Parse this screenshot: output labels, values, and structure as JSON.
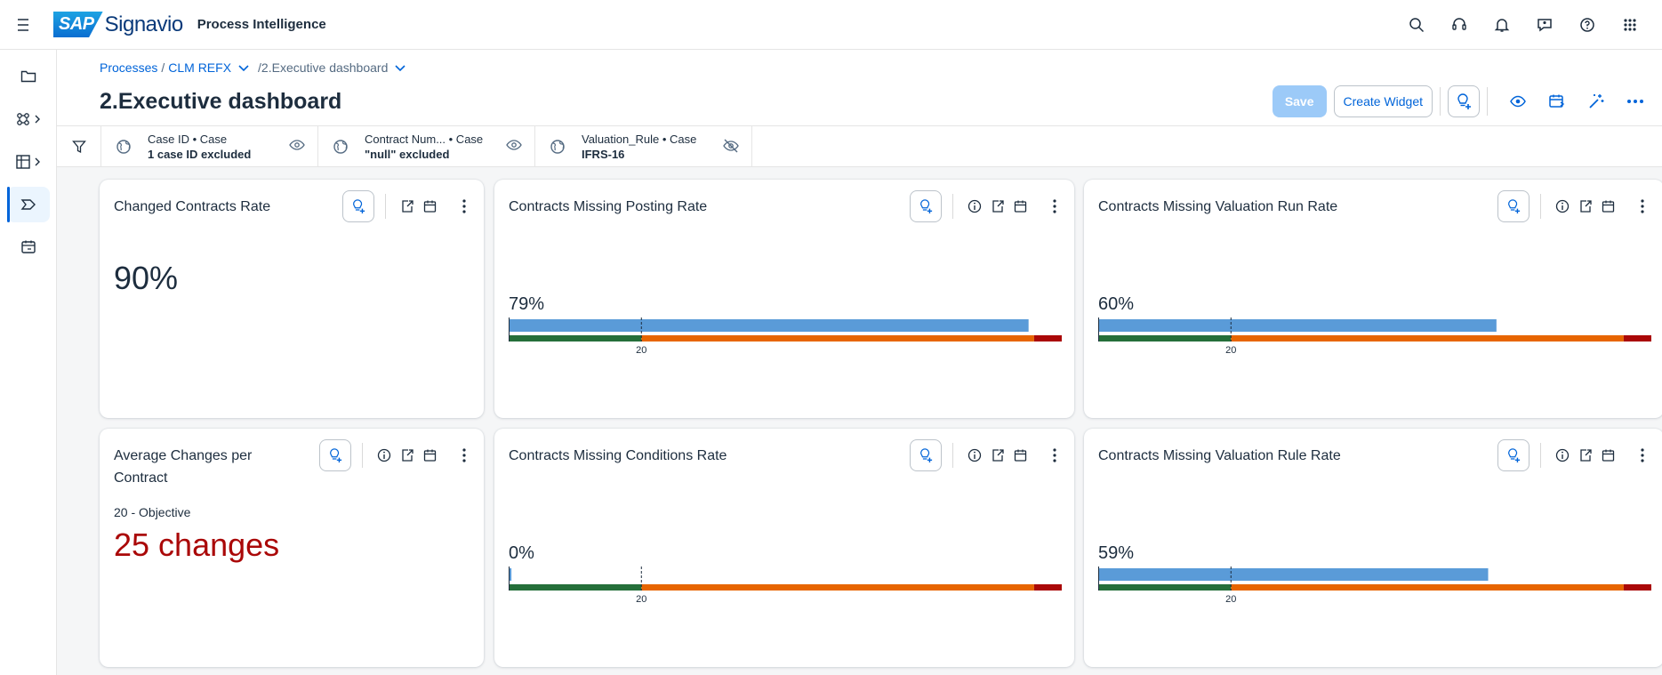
{
  "app": {
    "brand_badge": "SAP",
    "brand_name": "Signavio",
    "product": "Process Intelligence"
  },
  "topbar_icons": [
    "search-icon",
    "headset-icon",
    "bell-icon",
    "feedback-icon",
    "help-icon",
    "grid-icon"
  ],
  "sidebar_icons": [
    "folder-icon",
    "process-icon",
    "dashboard-icon",
    "investigation-icon",
    "calendar-icon"
  ],
  "breadcrumb": {
    "root": "Processes",
    "process": "CLM REFX",
    "current": "/2.Executive dashboard"
  },
  "page_title": "2.Executive dashboard",
  "actions": {
    "save": "Save",
    "create_widget": "Create Widget"
  },
  "filters": [
    {
      "label": "Case ID • Case",
      "value": "1 case ID excluded",
      "visible": true
    },
    {
      "label": "Contract Num...  • Case",
      "value": "\"null\" excluded",
      "visible": true
    },
    {
      "label": "Valuation_Rule • Case",
      "value": "IFRS-16",
      "visible": false
    }
  ],
  "colors": {
    "bar_actual": "#5a9bd8",
    "green": "#256f3a",
    "orange": "#e76500",
    "red": "#aa0808",
    "accent": "#0064d9"
  },
  "widgets": {
    "changed_contracts": {
      "title": "Changed Contracts Rate",
      "value": "90%"
    },
    "missing_posting": {
      "title": "Contracts Missing Posting Rate",
      "value": "79%",
      "target_label": "20",
      "actual": 94
    },
    "missing_valuation_run": {
      "title": "Contracts Missing Valuation Run Rate",
      "value": "60%",
      "target_label": "20",
      "actual": 72
    },
    "avg_changes": {
      "title_line1": "Average Changes per",
      "title_line2": "Contract",
      "objective": "20 - Objective",
      "value": "25 changes"
    },
    "missing_conditions": {
      "title": "Contracts Missing Conditions Rate",
      "value": "0%",
      "target_label": "20",
      "actual": 0.5
    },
    "missing_valuation_rule": {
      "title": "Contracts Missing Valuation Rule Rate",
      "value": "59%",
      "target_label": "20",
      "actual": 70.5
    }
  },
  "bullet_scale": {
    "target": 24,
    "red_start": 95
  }
}
